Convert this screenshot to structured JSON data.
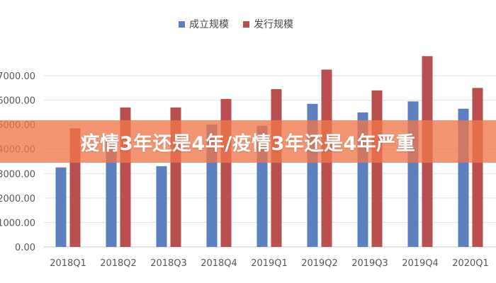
{
  "colors": {
    "series_1": "#5B7FBF",
    "series_2": "#B9504F",
    "banner_bg": "#F0764C",
    "banner_text": "#FFFFFF"
  },
  "legend": {
    "item_1": "成立规模",
    "item_2": "发行规模"
  },
  "banner": {
    "text": "疫情3年还是4年/疫情3年还是4年严重"
  },
  "chart_data": {
    "type": "bar",
    "title": "",
    "xlabel": "",
    "ylabel": "",
    "categories": [
      "2018Q1",
      "2018Q2",
      "2018Q3",
      "2018Q4",
      "2019Q1",
      "2019Q2",
      "2019Q3",
      "2019Q4",
      "2020Q1"
    ],
    "y_tick_labels": [
      "0.00",
      "1000.00",
      "2000.00",
      "3000.00",
      "4000.00",
      "5000.00",
      "6000.00",
      "7000.00"
    ],
    "ylim": [
      0,
      8000
    ],
    "grid": true,
    "legend_position": "top",
    "series": [
      {
        "name": "成立规模",
        "values": [
          3250,
          4450,
          3300,
          5000,
          4950,
          5850,
          5500,
          5950,
          5650
        ]
      },
      {
        "name": "发行规模",
        "values": [
          4850,
          5700,
          5700,
          6050,
          6450,
          7250,
          6400,
          7800,
          6500
        ]
      }
    ]
  }
}
